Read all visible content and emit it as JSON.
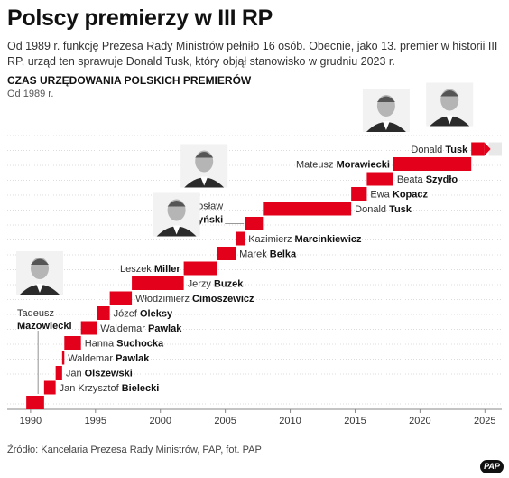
{
  "title": "Polscy premierzy w III RP",
  "subtitle": "Od 1989 r. funkcję Prezesa Rady Ministrów pełniło 16 osób. Obecnie, jako 13. premier w historii III RP, urząd ten sprawuje Donald Tusk, który objął stanowisko w grudniu 2023 r.",
  "section_title": "CZAS URZĘDOWANIA POLSKICH PREMIERÓW",
  "section_note": "Od 1989 r.",
  "source": "Źródło: Kancelaria Prezesa Rady Ministrów, PAP, fot. PAP",
  "logo": "PAP",
  "colors": {
    "bar": "#e3001b",
    "ongoing": "#e8e8e8",
    "grid": "#dddddd",
    "axis": "#888888",
    "leader": "#777777"
  },
  "chart_data": {
    "type": "bar",
    "orientation": "horizontal-timeline",
    "title": "CZAS URZĘDOWANIA POLSKICH PREMIERÓW",
    "subtitle": "Od 1989 r.",
    "xlim": [
      1988.2,
      2026.3
    ],
    "x_ticks": [
      1990,
      1995,
      2000,
      2005,
      2010,
      2015,
      2020,
      2025
    ],
    "grid": true,
    "premiers": [
      {
        "first": "Tadeusz",
        "last": "Mazowiecki",
        "start": 1989.67,
        "end": 1991.04,
        "photo": true,
        "label_side": "above",
        "stacked": true
      },
      {
        "first": "Jan Krzysztof",
        "last": "Bielecki",
        "start": 1991.04,
        "end": 1991.93,
        "label_side": "right"
      },
      {
        "first": "Jan",
        "last": "Olszewski",
        "start": 1991.93,
        "end": 1992.43,
        "label_side": "right"
      },
      {
        "first": "Waldemar",
        "last": "Pawlak",
        "start": 1992.43,
        "end": 1992.6,
        "label_side": "right"
      },
      {
        "first": "Hanna",
        "last": "Suchocka",
        "start": 1992.6,
        "end": 1993.88,
        "label_side": "right"
      },
      {
        "first": "Waldemar",
        "last": "Pawlak",
        "start": 1993.88,
        "end": 1995.1,
        "label_side": "right"
      },
      {
        "first": "Józef",
        "last": "Oleksy",
        "start": 1995.1,
        "end": 1996.1,
        "label_side": "right"
      },
      {
        "first": "Włodzimierz",
        "last": "Cimoszewicz",
        "start": 1996.1,
        "end": 1997.8,
        "label_side": "right"
      },
      {
        "first": "Jerzy",
        "last": "Buzek",
        "start": 1997.8,
        "end": 2001.8,
        "label_side": "right"
      },
      {
        "first": "Leszek",
        "last": "Miller",
        "start": 2001.8,
        "end": 2004.4,
        "photo": true,
        "label_side": "left"
      },
      {
        "first": "Marek",
        "last": "Belka",
        "start": 2004.4,
        "end": 2005.8,
        "label_side": "right"
      },
      {
        "first": "Kazimierz",
        "last": "Marcinkiewicz",
        "start": 2005.8,
        "end": 2006.5,
        "label_side": "right"
      },
      {
        "first": "Jarosław",
        "last": "Kaczyński",
        "start": 2006.5,
        "end": 2007.9,
        "photo": true,
        "label_side": "left",
        "stacked": true
      },
      {
        "first": "Donald",
        "last": "Tusk",
        "start": 2007.9,
        "end": 2014.7,
        "label_side": "right"
      },
      {
        "first": "Ewa",
        "last": "Kopacz",
        "start": 2014.7,
        "end": 2015.9,
        "label_side": "right"
      },
      {
        "first": "Beata",
        "last": "Szydło",
        "start": 2015.9,
        "end": 2017.95,
        "label_side": "right"
      },
      {
        "first": "Mateusz",
        "last": "Morawiecki",
        "start": 2017.95,
        "end": 2023.95,
        "photo": true,
        "label_side": "left"
      },
      {
        "first": "Donald",
        "last": "Tusk",
        "start": 2023.95,
        "end": 2025.3,
        "photo": true,
        "label_side": "left",
        "ongoing": true
      }
    ]
  }
}
